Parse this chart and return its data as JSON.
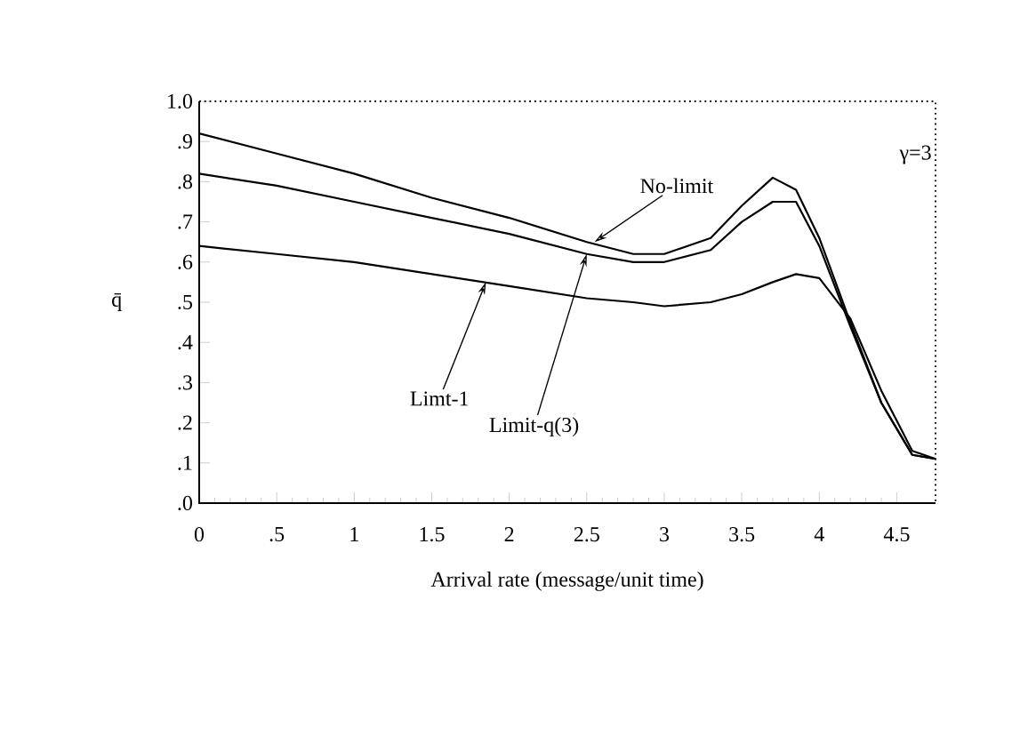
{
  "chart_data": {
    "type": "line",
    "xlabel": "Arrival rate (message/unit time)",
    "ylabel": "q̄",
    "xlim": [
      0,
      4.75
    ],
    "ylim": [
      0,
      1.0
    ],
    "xticks": [
      0,
      {
        "value": 0.5,
        "label": ".5"
      },
      1,
      1.5,
      2,
      2.5,
      3,
      3.5,
      4,
      4.5
    ],
    "yticks": [
      {
        "value": 0,
        "label": ".0"
      },
      {
        "value": 0.1,
        "label": ".1"
      },
      {
        "value": 0.2,
        "label": ".2"
      },
      {
        "value": 0.3,
        "label": ".3"
      },
      {
        "value": 0.4,
        "label": ".4"
      },
      {
        "value": 0.5,
        "label": ".5"
      },
      {
        "value": 0.6,
        "label": ".6"
      },
      {
        "value": 0.7,
        "label": ".7"
      },
      {
        "value": 0.8,
        "label": ".8"
      },
      {
        "value": 0.9,
        "label": ".9"
      },
      {
        "value": 1.0,
        "label": "1.0"
      }
    ],
    "x": [
      0,
      0.5,
      1,
      1.5,
      2,
      2.5,
      2.8,
      3,
      3.3,
      3.5,
      3.7,
      3.85,
      4,
      4.2,
      4.4,
      4.6,
      4.75
    ],
    "series": [
      {
        "color": "#000000",
        "values": [
          0.92,
          0.87,
          0.82,
          0.76,
          0.71,
          0.65,
          0.62,
          0.62,
          0.66,
          0.74,
          0.81,
          0.78,
          0.66,
          0.45,
          0.25,
          0.12,
          0.11
        ]
      },
      {
        "color": "#000000",
        "values": [
          0.82,
          0.79,
          0.75,
          0.71,
          0.67,
          0.62,
          0.6,
          0.6,
          0.63,
          0.7,
          0.75,
          0.75,
          0.64,
          0.44,
          0.25,
          0.12,
          0.11
        ]
      },
      {
        "color": "#000000",
        "values": [
          0.64,
          0.62,
          0.6,
          0.57,
          0.54,
          0.51,
          0.5,
          0.49,
          0.5,
          0.52,
          0.55,
          0.57,
          0.56,
          0.46,
          0.28,
          0.13,
          0.11
        ]
      }
    ],
    "annotations": [
      {
        "text": "No-limit",
        "x": 2.55,
        "y": 0.65
      },
      {
        "text": "Limit-q(3)",
        "x": 2.5,
        "y": 0.62
      },
      {
        "text": "Limt-1",
        "x": 1.85,
        "y": 0.55
      },
      "γ=3"
    ],
    "grid": false,
    "marker": "none",
    "line_style": "solid"
  }
}
